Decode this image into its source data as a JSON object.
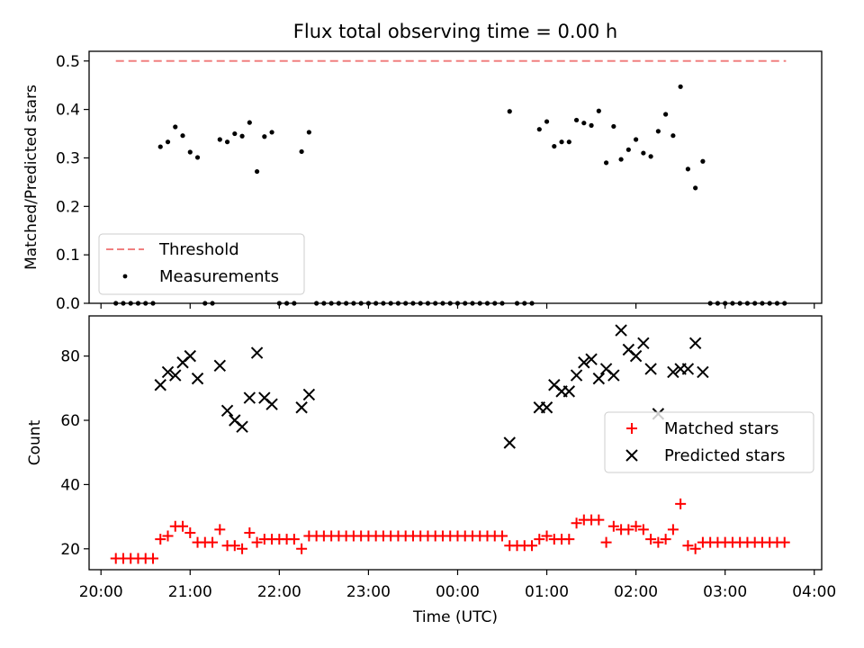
{
  "title": "Flux total observing time = 0.00 h",
  "chart_data": [
    {
      "type": "scatter",
      "title": "Flux total observing time = 0.00 h",
      "xlabel": "",
      "ylabel": "Matched/Predicted stars",
      "xlim": [
        "19:52",
        "04:05"
      ],
      "ylim": [
        0,
        0.52
      ],
      "yticks": [
        0.0,
        0.1,
        0.2,
        0.3,
        0.4,
        0.5
      ],
      "yticklabels": [
        "0.0",
        "0.1",
        "0.2",
        "0.3",
        "0.4",
        "0.5"
      ],
      "legend_placement": "lower-left",
      "threshold": {
        "name": "Threshold",
        "value": 0.5,
        "x_range": [
          "20:10",
          "03:41"
        ],
        "color": "#f08080",
        "style": "dashed"
      },
      "series": [
        {
          "name": "Measurements",
          "marker": "dot",
          "color": "#000000",
          "x": [
            "20:10",
            "20:15",
            "20:20",
            "20:25",
            "20:30",
            "20:35",
            "20:40",
            "20:45",
            "20:50",
            "20:55",
            "21:00",
            "21:05",
            "21:10",
            "21:15",
            "21:20",
            "21:25",
            "21:30",
            "21:35",
            "21:40",
            "21:45",
            "21:50",
            "21:55",
            "22:00",
            "22:05",
            "22:10",
            "22:15",
            "22:20",
            "22:25",
            "22:30",
            "22:35",
            "22:40",
            "22:45",
            "22:50",
            "22:55",
            "23:00",
            "23:05",
            "23:10",
            "23:15",
            "23:20",
            "23:25",
            "23:30",
            "23:35",
            "23:40",
            "23:45",
            "23:50",
            "23:55",
            "00:00",
            "00:05",
            "00:10",
            "00:15",
            "00:20",
            "00:25",
            "00:30",
            "00:35",
            "00:40",
            "00:45",
            "00:50",
            "00:55",
            "01:00",
            "01:05",
            "01:10",
            "01:15",
            "01:20",
            "01:25",
            "01:30",
            "01:35",
            "01:40",
            "01:45",
            "01:50",
            "01:55",
            "02:00",
            "02:05",
            "02:10",
            "02:15",
            "02:20",
            "02:25",
            "02:30",
            "02:35",
            "02:40",
            "02:45",
            "02:50",
            "02:55",
            "03:00",
            "03:05",
            "03:10",
            "03:15",
            "03:20",
            "03:25",
            "03:30",
            "03:35",
            "03:40"
          ],
          "y": [
            0,
            0,
            0,
            0,
            0,
            0,
            0.323,
            0.333,
            0.364,
            0.346,
            0.312,
            0.301,
            0,
            0,
            0.338,
            0.333,
            0.35,
            0.345,
            0.373,
            0.272,
            0.344,
            0.353,
            0,
            0,
            0,
            0.313,
            0.353,
            0,
            0,
            0,
            0,
            0,
            0,
            0,
            0,
            0,
            0,
            0,
            0,
            0,
            0,
            0,
            0,
            0,
            0,
            0,
            0,
            0,
            0,
            0,
            0,
            0,
            0,
            0.396,
            0,
            0,
            0,
            0.359,
            0.375,
            0.324,
            0.333,
            0.333,
            0.378,
            0.372,
            0.367,
            0.397,
            0.29,
            0.365,
            0.297,
            0.317,
            0.338,
            0.31,
            0.303,
            0.355,
            0.39,
            0.346,
            0.447,
            0.277,
            0.238,
            0.293,
            0,
            0,
            0,
            0,
            0,
            0,
            0,
            0,
            0,
            0,
            0
          ]
        }
      ]
    },
    {
      "type": "scatter",
      "title": "",
      "xlabel": "Time (UTC)",
      "ylabel": "Count",
      "xlim": [
        "19:52",
        "04:05"
      ],
      "ylim": [
        13.5,
        92.5
      ],
      "yticks": [
        20,
        40,
        60,
        80
      ],
      "yticklabels": [
        "20",
        "40",
        "60",
        "80"
      ],
      "xticks": [
        "20:00",
        "21:00",
        "22:00",
        "23:00",
        "00:00",
        "01:00",
        "02:00",
        "03:00",
        "04:00"
      ],
      "legend_placement": "center-right",
      "series": [
        {
          "name": "Matched stars",
          "marker": "plus",
          "color": "#ff0000",
          "x": [
            "20:10",
            "20:15",
            "20:20",
            "20:25",
            "20:30",
            "20:35",
            "20:40",
            "20:45",
            "20:50",
            "20:55",
            "21:00",
            "21:05",
            "21:10",
            "21:15",
            "21:20",
            "21:25",
            "21:30",
            "21:35",
            "21:40",
            "21:45",
            "21:50",
            "21:55",
            "22:00",
            "22:05",
            "22:10",
            "22:15",
            "22:20",
            "22:25",
            "22:30",
            "22:35",
            "22:40",
            "22:45",
            "22:50",
            "22:55",
            "23:00",
            "23:05",
            "23:10",
            "23:15",
            "23:20",
            "23:25",
            "23:30",
            "23:35",
            "23:40",
            "23:45",
            "23:50",
            "23:55",
            "00:00",
            "00:05",
            "00:10",
            "00:15",
            "00:20",
            "00:25",
            "00:30",
            "00:35",
            "00:40",
            "00:45",
            "00:50",
            "00:55",
            "01:00",
            "01:05",
            "01:10",
            "01:15",
            "01:20",
            "01:25",
            "01:30",
            "01:35",
            "01:40",
            "01:45",
            "01:50",
            "01:55",
            "02:00",
            "02:05",
            "02:10",
            "02:15",
            "02:20",
            "02:25",
            "02:30",
            "02:35",
            "02:40",
            "02:45",
            "02:50",
            "02:55",
            "03:00",
            "03:05",
            "03:10",
            "03:15",
            "03:20",
            "03:25",
            "03:30",
            "03:35",
            "03:40"
          ],
          "y": [
            17,
            17,
            17,
            17,
            17,
            17,
            23,
            24,
            27,
            27,
            25,
            22,
            22,
            22,
            26,
            21,
            21,
            20,
            25,
            22,
            23,
            23,
            23,
            23,
            23,
            20,
            24,
            24,
            24,
            24,
            24,
            24,
            24,
            24,
            24,
            24,
            24,
            24,
            24,
            24,
            24,
            24,
            24,
            24,
            24,
            24,
            24,
            24,
            24,
            24,
            24,
            24,
            24,
            21,
            21,
            21,
            21,
            23,
            24,
            23,
            23,
            23,
            28,
            29,
            29,
            29,
            22,
            27,
            26,
            26,
            27,
            26,
            23,
            22,
            23,
            26,
            34,
            21,
            20,
            22,
            22,
            22,
            22,
            22,
            22,
            22,
            22,
            22,
            22,
            22,
            22
          ]
        },
        {
          "name": "Predicted stars",
          "marker": "x",
          "color": "#000000",
          "x": [
            "20:40",
            "20:45",
            "20:50",
            "20:55",
            "21:00",
            "21:05",
            "21:20",
            "21:25",
            "21:30",
            "21:35",
            "21:40",
            "21:45",
            "21:50",
            "21:55",
            "22:15",
            "22:20",
            "00:35",
            "00:55",
            "01:00",
            "01:05",
            "01:10",
            "01:15",
            "01:20",
            "01:25",
            "01:30",
            "01:35",
            "01:40",
            "01:45",
            "01:50",
            "01:55",
            "02:00",
            "02:05",
            "02:10",
            "02:15",
            "02:25",
            "02:30",
            "02:35",
            "02:40",
            "02:45"
          ],
          "y": [
            71,
            75,
            74,
            78,
            80,
            73,
            77,
            63,
            60,
            58,
            67,
            81,
            67,
            65,
            64,
            68,
            53,
            64,
            64,
            71,
            69,
            69,
            74,
            78,
            79,
            73,
            76,
            74,
            88,
            82,
            80,
            84,
            76,
            62,
            75,
            76,
            76,
            84,
            75
          ]
        }
      ]
    }
  ]
}
